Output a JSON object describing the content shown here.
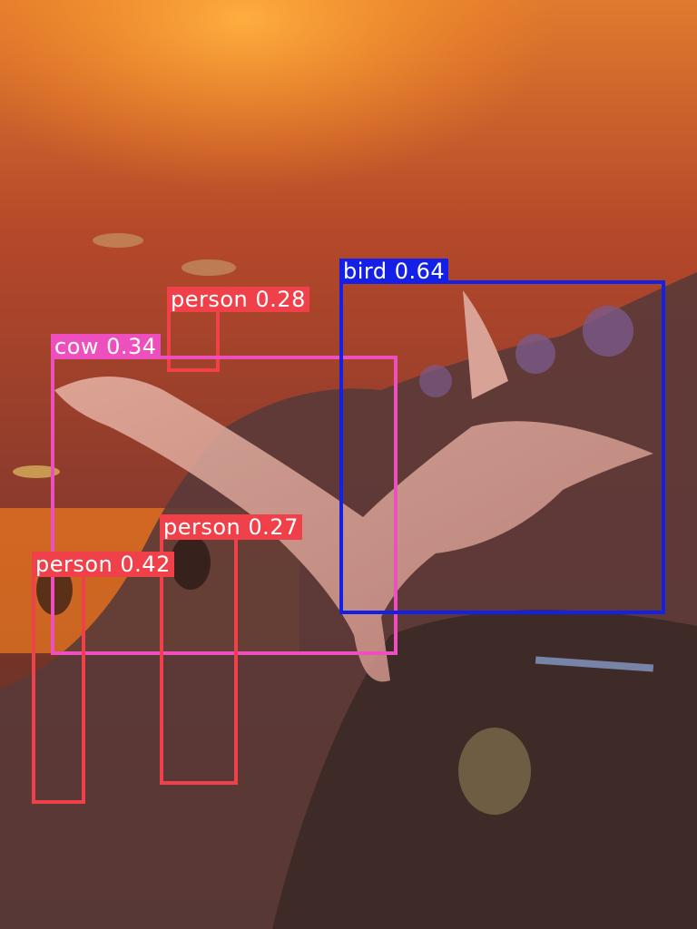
{
  "detections": [
    {
      "label": "person 0.28",
      "color": "#f0414a"
    },
    {
      "label": "cow 0.34",
      "color": "#ee4fbf"
    },
    {
      "label": "bird 0.64",
      "color": "#1420e6"
    },
    {
      "label": "person 0.27",
      "color": "#f0414a"
    },
    {
      "label": "person 0.42",
      "color": "#f0414a"
    }
  ]
}
